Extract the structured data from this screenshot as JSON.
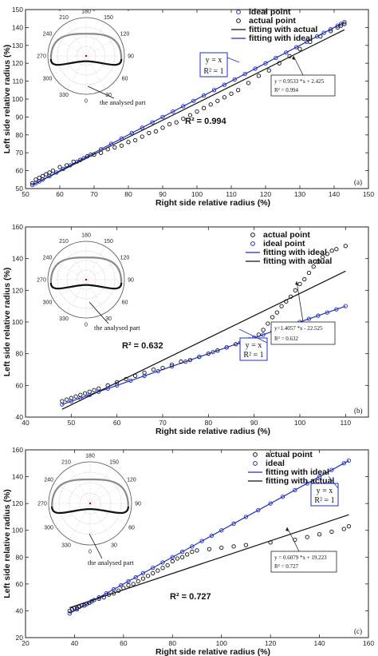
{
  "chart_data": [
    {
      "type": "scatter",
      "panel_label": "(a)",
      "xlabel": "Right side relative radius (%)",
      "ylabel": "Left side relative radius (%)",
      "xlim": [
        50,
        150
      ],
      "ylim": [
        50,
        150
      ],
      "x_ticks": [
        50,
        60,
        70,
        80,
        90,
        100,
        110,
        120,
        130,
        140,
        150
      ],
      "y_ticks": [
        50,
        60,
        70,
        80,
        90,
        100,
        110,
        120,
        130,
        140,
        150
      ],
      "legend": [
        "ideal point",
        "actual point",
        "fitting with actual",
        "fitting with ideal"
      ],
      "legend_placement": "top-right",
      "series": [
        {
          "name": "ideal point",
          "marker": "circle",
          "color": "#1f2fbf",
          "x": [
            52,
            53,
            54,
            55,
            57,
            59,
            61,
            63,
            65,
            67,
            69,
            72,
            75,
            78,
            81,
            84,
            87,
            90,
            93,
            96,
            99,
            102,
            105,
            108,
            111,
            114,
            117,
            120,
            123,
            126,
            129,
            132,
            135,
            137,
            139,
            141,
            142,
            143
          ],
          "y": [
            52,
            53,
            54,
            55,
            57,
            59,
            61,
            63,
            65,
            67,
            69,
            72,
            75,
            78,
            81,
            84,
            87,
            90,
            93,
            96,
            99,
            102,
            105,
            108,
            111,
            114,
            117,
            120,
            123,
            126,
            129,
            132,
            135,
            137,
            139,
            141,
            142,
            143
          ]
        },
        {
          "name": "actual point",
          "marker": "circle",
          "color": "#111111",
          "x": [
            52,
            53,
            54,
            55,
            56,
            57,
            58,
            60,
            62,
            64,
            66,
            68,
            70,
            72,
            74,
            76,
            78,
            80,
            82,
            84,
            86,
            88,
            90,
            92,
            94,
            96,
            98,
            100,
            102,
            104,
            106,
            108,
            110,
            112,
            115,
            118,
            121,
            124,
            127,
            130,
            133,
            136,
            139,
            141,
            142,
            143
          ],
          "y": [
            53,
            55,
            56,
            57,
            58,
            59,
            60,
            62,
            63,
            65,
            66,
            68,
            69,
            70,
            72,
            73,
            74,
            76,
            77,
            79,
            81,
            82,
            84,
            86,
            87,
            89,
            91,
            93,
            95,
            97,
            99,
            101,
            103,
            105,
            109,
            113,
            116,
            120,
            124,
            128,
            132,
            135,
            138,
            140,
            141,
            142
          ]
        },
        {
          "name": "fitting with actual",
          "line": true,
          "color": "#111111",
          "slope": 0.9533,
          "intercept": 2.425,
          "x_range": [
            52,
            143
          ]
        },
        {
          "name": "fitting with ideal",
          "line": true,
          "color": "#1f2fbf",
          "slope": 1,
          "intercept": 0,
          "x_range": [
            52,
            143
          ]
        }
      ],
      "annotations": {
        "ideal_eq": "y = x",
        "ideal_r2": "R² = 1",
        "fit_eq": "y = 0.9533 *x + 2.425",
        "fit_r2": "R² = 0.994",
        "r2_big": "R² = 0.994",
        "part_label": "the analysed part"
      }
    },
    {
      "type": "scatter",
      "panel_label": "(b)",
      "xlabel": "Right side relative radius (%)",
      "ylabel": "Left side relative radius (%)",
      "xlim": [
        40,
        115
      ],
      "ylim": [
        40,
        160
      ],
      "x_ticks": [
        40,
        50,
        60,
        70,
        80,
        90,
        100,
        110
      ],
      "y_ticks": [
        40,
        60,
        80,
        100,
        120,
        140,
        160
      ],
      "legend": [
        "actual point",
        "ideal point",
        "fitting with ideal",
        "fitting with actual"
      ],
      "legend_placement": "top-right",
      "series": [
        {
          "name": "actual point",
          "marker": "circle",
          "color": "#111111",
          "x": [
            48,
            49,
            50,
            51,
            52,
            53,
            54,
            55,
            56,
            58,
            60,
            62,
            64,
            66,
            68,
            70,
            72,
            74,
            76,
            78,
            80,
            82,
            84,
            86,
            88,
            89,
            90,
            91,
            92,
            93,
            94,
            95,
            96,
            97,
            98,
            99,
            100,
            101,
            102,
            103,
            104,
            105,
            106,
            107,
            108,
            110
          ],
          "y": [
            50,
            51,
            52,
            53,
            54,
            55,
            56,
            57,
            58,
            60,
            62,
            64,
            66,
            68,
            70,
            71,
            73,
            75,
            76,
            78,
            80,
            82,
            84,
            86,
            88,
            89,
            90,
            92,
            95,
            99,
            103,
            106,
            110,
            113,
            116,
            120,
            124,
            127,
            131,
            135,
            138,
            141,
            143,
            145,
            146,
            148
          ]
        },
        {
          "name": "ideal point",
          "marker": "circle",
          "color": "#1f2fbf",
          "x": [
            48,
            50,
            52,
            54,
            56,
            58,
            60,
            63,
            66,
            69,
            72,
            75,
            78,
            81,
            84,
            87,
            90,
            92,
            94,
            96,
            98,
            100,
            102,
            104,
            106,
            108,
            110
          ],
          "y": [
            48,
            50,
            52,
            54,
            56,
            58,
            60,
            63,
            66,
            69,
            72,
            75,
            78,
            81,
            84,
            87,
            90,
            92,
            94,
            96,
            98,
            100,
            102,
            104,
            106,
            108,
            110
          ]
        },
        {
          "name": "fitting with ideal",
          "line": true,
          "color": "#1f2fbf",
          "slope": 1,
          "intercept": 0,
          "x_range": [
            48,
            110
          ]
        },
        {
          "name": "fitting with actual",
          "line": true,
          "color": "#111111",
          "slope": 1.4057,
          "intercept": -22.525,
          "x_range": [
            48,
            110
          ]
        }
      ],
      "annotations": {
        "ideal_eq": "y = x",
        "ideal_r2": "R² = 1",
        "fit_eq": "y=1.4057 *x - 22.525",
        "fit_r2": "R² = 0.632",
        "r2_big": "R² = 0.632",
        "part_label": "the analysed part"
      }
    },
    {
      "type": "scatter",
      "panel_label": "(c)",
      "xlabel": "Right side relative radius (%)",
      "ylabel": "Left side relative radius (%)",
      "xlim": [
        20,
        160
      ],
      "ylim": [
        20,
        160
      ],
      "x_ticks": [
        20,
        40,
        60,
        80,
        100,
        120,
        140,
        160
      ],
      "y_ticks": [
        20,
        40,
        60,
        80,
        100,
        120,
        140,
        160
      ],
      "legend": [
        "actual point",
        "ideal",
        "fitting with ideal",
        "fitting with actual"
      ],
      "legend_placement": "top-right",
      "series": [
        {
          "name": "actual point",
          "marker": "circle",
          "color": "#111111",
          "x": [
            38,
            39,
            40,
            41,
            42,
            43,
            44,
            45,
            46,
            47,
            48,
            50,
            52,
            54,
            56,
            58,
            60,
            62,
            64,
            66,
            68,
            70,
            72,
            74,
            76,
            78,
            80,
            82,
            84,
            86,
            88,
            90,
            95,
            100,
            105,
            110,
            120,
            130,
            135,
            140,
            145,
            150,
            152
          ],
          "y": [
            40,
            41,
            42,
            42,
            43,
            44,
            44,
            45,
            46,
            47,
            48,
            49,
            50,
            52,
            53,
            55,
            57,
            59,
            60,
            62,
            64,
            66,
            68,
            70,
            72,
            74,
            77,
            79,
            80,
            82,
            84,
            85,
            86,
            87,
            88,
            89,
            91,
            93,
            95,
            97,
            99,
            101,
            103
          ]
        },
        {
          "name": "ideal",
          "marker": "circle",
          "color": "#1f2fbf",
          "x": [
            38,
            41,
            44,
            47,
            50,
            53,
            56,
            59,
            62,
            65,
            68,
            72,
            76,
            80,
            84,
            88,
            92,
            96,
            100,
            105,
            110,
            115,
            120,
            125,
            130,
            135,
            140,
            145,
            150,
            152
          ],
          "y": [
            38,
            41,
            44,
            47,
            50,
            53,
            56,
            59,
            62,
            65,
            68,
            72,
            76,
            80,
            84,
            88,
            92,
            96,
            100,
            105,
            110,
            115,
            120,
            125,
            130,
            135,
            140,
            145,
            150,
            152
          ]
        },
        {
          "name": "fitting with ideal",
          "line": true,
          "color": "#1f2fbf",
          "slope": 1,
          "intercept": 0,
          "x_range": [
            38,
            152
          ]
        },
        {
          "name": "fitting with actual",
          "line": true,
          "color": "#111111",
          "slope": 0.6079,
          "intercept": 19.223,
          "x_range": [
            38,
            152
          ]
        }
      ],
      "annotations": {
        "ideal_eq": "y = x",
        "ideal_r2": "R² = 1",
        "fit_eq": "y = 0.6079 *x + 19.223",
        "fit_r2": "R² = 0.727",
        "r2_big": "R² = 0.727",
        "part_label": "the analysed part"
      }
    }
  ],
  "polar": {
    "angle_labels": [
      "180",
      "150",
      "120",
      "90",
      "60",
      "30",
      "0",
      "330",
      "300",
      "270",
      "240",
      "210"
    ]
  },
  "colors": {
    "ideal": "#1f2fbf",
    "actual": "#111111",
    "gray_shape": "#8a8a8a"
  }
}
